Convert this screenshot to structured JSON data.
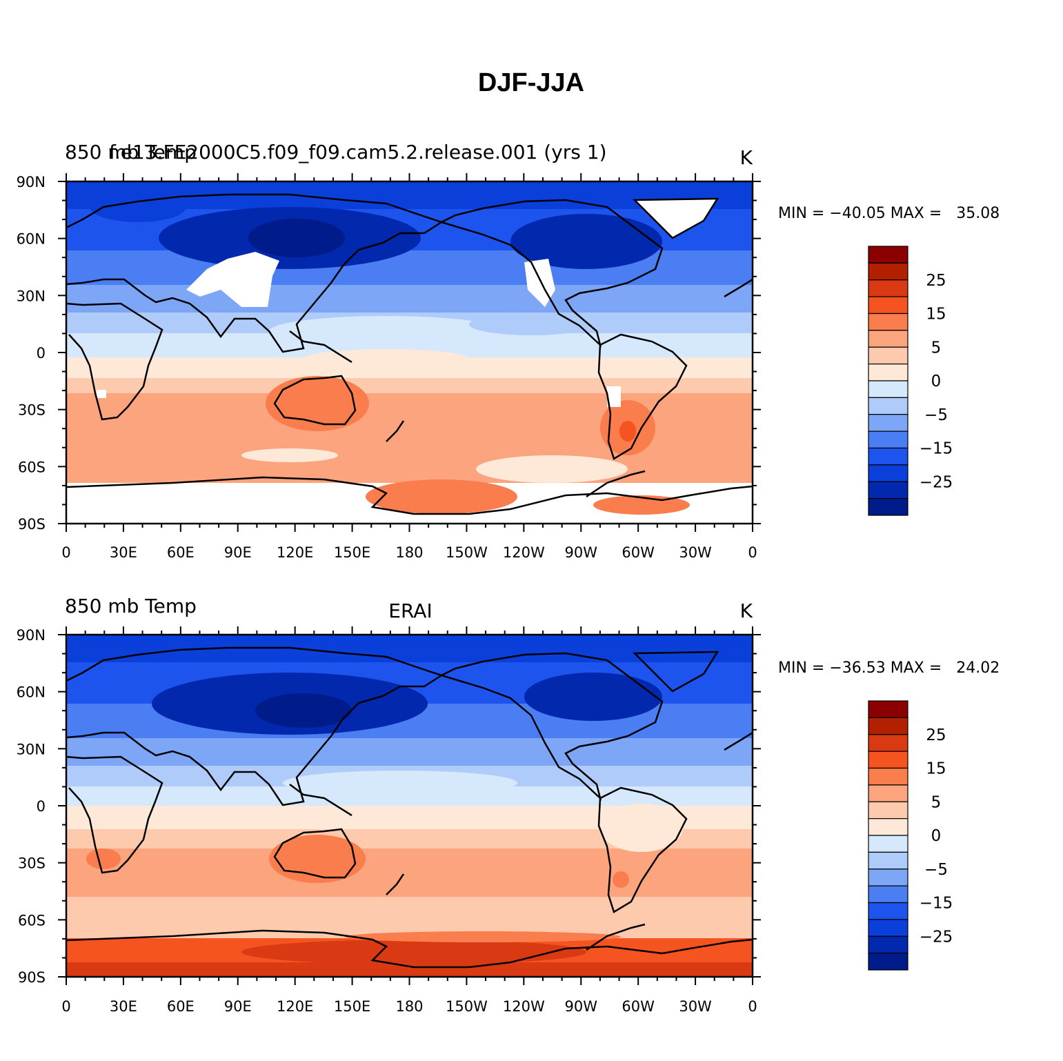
{
  "figure": {
    "title": "DJF-JJA"
  },
  "lon_ticks": [
    "0",
    "30E",
    "60E",
    "90E",
    "120E",
    "150E",
    "180",
    "150W",
    "120W",
    "90W",
    "60W",
    "30W",
    "0"
  ],
  "lat_ticks": [
    "90N",
    "60N",
    "30N",
    "0",
    "30S",
    "60S",
    "90S"
  ],
  "colorbar": {
    "labels": [
      "25",
      "15",
      "5",
      "0",
      "−5",
      "−15",
      "−25"
    ],
    "colors": [
      "#8B0000",
      "#B22000",
      "#D93A14",
      "#F5531F",
      "#FA7E4D",
      "#FCA47E",
      "#FDCAAE",
      "#FEE8D8",
      "#D6E8FC",
      "#AFCBFA",
      "#7EA6F6",
      "#4A7EF2",
      "#1E54EE",
      "#0A3FD9",
      "#0228AE",
      "#001C8A"
    ]
  },
  "panels": [
    {
      "left_label": "850 mb Temp",
      "center_label": "f.e13.FE2000C5.f09_f09.cam5.2.release.001 (yrs 1)",
      "units": "K",
      "stats": "MIN = −40.05 MAX =   35.08"
    },
    {
      "left_label": "850 mb Temp",
      "center_label": "ERAI",
      "units": "K",
      "stats": "MIN = −36.53 MAX =   24.02"
    }
  ]
}
